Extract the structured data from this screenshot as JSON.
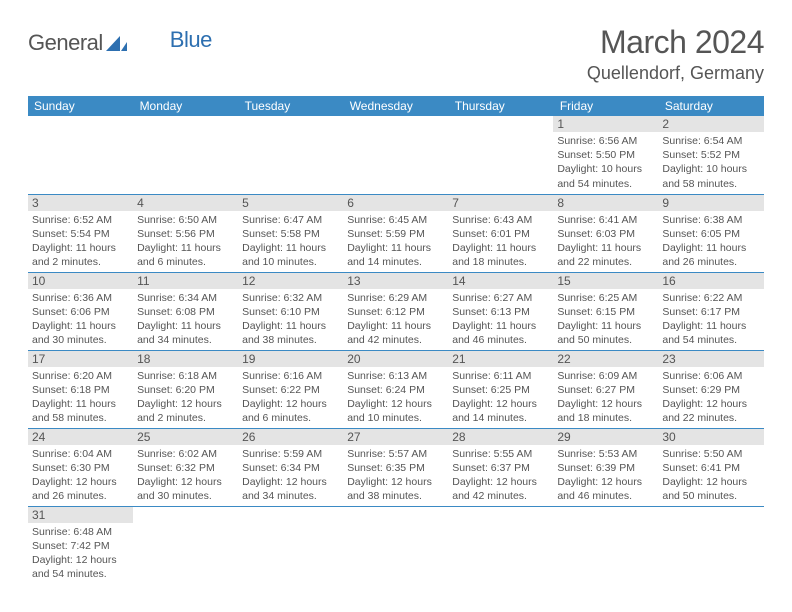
{
  "brand": {
    "part1": "General",
    "part2": "Blue"
  },
  "title": "March 2024",
  "location": "Quellendorf, Germany",
  "colors": {
    "header_bg": "#3b8ac4",
    "header_text": "#ffffff",
    "daynum_bg": "#e4e4e4",
    "text": "#555555",
    "line": "#3b8ac4",
    "brand_blue": "#2d6fb0"
  },
  "dayNames": [
    "Sunday",
    "Monday",
    "Tuesday",
    "Wednesday",
    "Thursday",
    "Friday",
    "Saturday"
  ],
  "weeks": [
    [
      null,
      null,
      null,
      null,
      null,
      {
        "n": "1",
        "sunrise": "6:56 AM",
        "sunset": "5:50 PM",
        "daylight": "10 hours and 54 minutes."
      },
      {
        "n": "2",
        "sunrise": "6:54 AM",
        "sunset": "5:52 PM",
        "daylight": "10 hours and 58 minutes."
      }
    ],
    [
      {
        "n": "3",
        "sunrise": "6:52 AM",
        "sunset": "5:54 PM",
        "daylight": "11 hours and 2 minutes."
      },
      {
        "n": "4",
        "sunrise": "6:50 AM",
        "sunset": "5:56 PM",
        "daylight": "11 hours and 6 minutes."
      },
      {
        "n": "5",
        "sunrise": "6:47 AM",
        "sunset": "5:58 PM",
        "daylight": "11 hours and 10 minutes."
      },
      {
        "n": "6",
        "sunrise": "6:45 AM",
        "sunset": "5:59 PM",
        "daylight": "11 hours and 14 minutes."
      },
      {
        "n": "7",
        "sunrise": "6:43 AM",
        "sunset": "6:01 PM",
        "daylight": "11 hours and 18 minutes."
      },
      {
        "n": "8",
        "sunrise": "6:41 AM",
        "sunset": "6:03 PM",
        "daylight": "11 hours and 22 minutes."
      },
      {
        "n": "9",
        "sunrise": "6:38 AM",
        "sunset": "6:05 PM",
        "daylight": "11 hours and 26 minutes."
      }
    ],
    [
      {
        "n": "10",
        "sunrise": "6:36 AM",
        "sunset": "6:06 PM",
        "daylight": "11 hours and 30 minutes."
      },
      {
        "n": "11",
        "sunrise": "6:34 AM",
        "sunset": "6:08 PM",
        "daylight": "11 hours and 34 minutes."
      },
      {
        "n": "12",
        "sunrise": "6:32 AM",
        "sunset": "6:10 PM",
        "daylight": "11 hours and 38 minutes."
      },
      {
        "n": "13",
        "sunrise": "6:29 AM",
        "sunset": "6:12 PM",
        "daylight": "11 hours and 42 minutes."
      },
      {
        "n": "14",
        "sunrise": "6:27 AM",
        "sunset": "6:13 PM",
        "daylight": "11 hours and 46 minutes."
      },
      {
        "n": "15",
        "sunrise": "6:25 AM",
        "sunset": "6:15 PM",
        "daylight": "11 hours and 50 minutes."
      },
      {
        "n": "16",
        "sunrise": "6:22 AM",
        "sunset": "6:17 PM",
        "daylight": "11 hours and 54 minutes."
      }
    ],
    [
      {
        "n": "17",
        "sunrise": "6:20 AM",
        "sunset": "6:18 PM",
        "daylight": "11 hours and 58 minutes."
      },
      {
        "n": "18",
        "sunrise": "6:18 AM",
        "sunset": "6:20 PM",
        "daylight": "12 hours and 2 minutes."
      },
      {
        "n": "19",
        "sunrise": "6:16 AM",
        "sunset": "6:22 PM",
        "daylight": "12 hours and 6 minutes."
      },
      {
        "n": "20",
        "sunrise": "6:13 AM",
        "sunset": "6:24 PM",
        "daylight": "12 hours and 10 minutes."
      },
      {
        "n": "21",
        "sunrise": "6:11 AM",
        "sunset": "6:25 PM",
        "daylight": "12 hours and 14 minutes."
      },
      {
        "n": "22",
        "sunrise": "6:09 AM",
        "sunset": "6:27 PM",
        "daylight": "12 hours and 18 minutes."
      },
      {
        "n": "23",
        "sunrise": "6:06 AM",
        "sunset": "6:29 PM",
        "daylight": "12 hours and 22 minutes."
      }
    ],
    [
      {
        "n": "24",
        "sunrise": "6:04 AM",
        "sunset": "6:30 PM",
        "daylight": "12 hours and 26 minutes."
      },
      {
        "n": "25",
        "sunrise": "6:02 AM",
        "sunset": "6:32 PM",
        "daylight": "12 hours and 30 minutes."
      },
      {
        "n": "26",
        "sunrise": "5:59 AM",
        "sunset": "6:34 PM",
        "daylight": "12 hours and 34 minutes."
      },
      {
        "n": "27",
        "sunrise": "5:57 AM",
        "sunset": "6:35 PM",
        "daylight": "12 hours and 38 minutes."
      },
      {
        "n": "28",
        "sunrise": "5:55 AM",
        "sunset": "6:37 PM",
        "daylight": "12 hours and 42 minutes."
      },
      {
        "n": "29",
        "sunrise": "5:53 AM",
        "sunset": "6:39 PM",
        "daylight": "12 hours and 46 minutes."
      },
      {
        "n": "30",
        "sunrise": "5:50 AM",
        "sunset": "6:41 PM",
        "daylight": "12 hours and 50 minutes."
      }
    ],
    [
      {
        "n": "31",
        "sunrise": "6:48 AM",
        "sunset": "7:42 PM",
        "daylight": "12 hours and 54 minutes."
      },
      null,
      null,
      null,
      null,
      null,
      null
    ]
  ],
  "labels": {
    "sunrise": "Sunrise:",
    "sunset": "Sunset:",
    "daylight": "Daylight:"
  }
}
